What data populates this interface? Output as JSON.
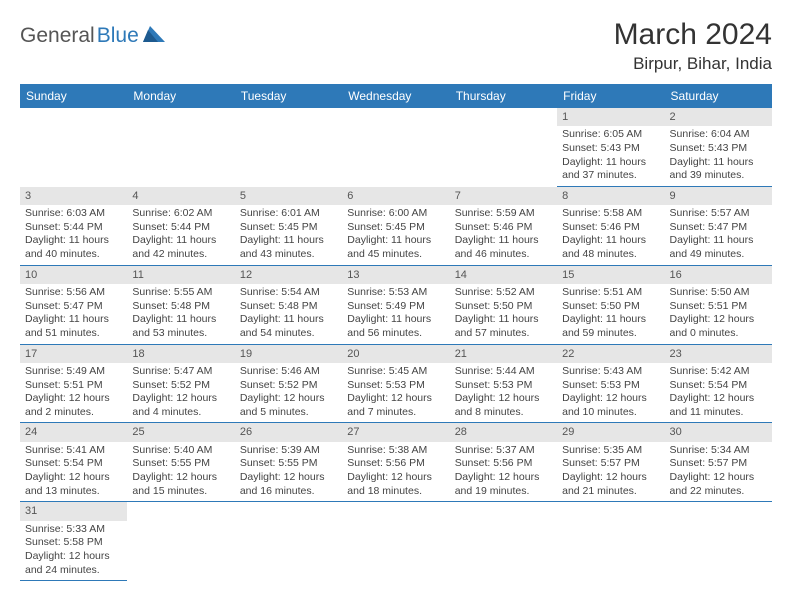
{
  "logo": {
    "part1": "General",
    "part2": "Blue"
  },
  "title": "March 2024",
  "location": "Birpur, Bihar, India",
  "colors": {
    "header_bg": "#2e79b8",
    "daynum_bg": "#e6e6e6",
    "border": "#2e79b8"
  },
  "weekdays": [
    "Sunday",
    "Monday",
    "Tuesday",
    "Wednesday",
    "Thursday",
    "Friday",
    "Saturday"
  ],
  "weeks": [
    [
      null,
      null,
      null,
      null,
      null,
      {
        "n": "1",
        "sr": "Sunrise: 6:05 AM",
        "ss": "Sunset: 5:43 PM",
        "d1": "Daylight: 11 hours",
        "d2": "and 37 minutes."
      },
      {
        "n": "2",
        "sr": "Sunrise: 6:04 AM",
        "ss": "Sunset: 5:43 PM",
        "d1": "Daylight: 11 hours",
        "d2": "and 39 minutes."
      }
    ],
    [
      {
        "n": "3",
        "sr": "Sunrise: 6:03 AM",
        "ss": "Sunset: 5:44 PM",
        "d1": "Daylight: 11 hours",
        "d2": "and 40 minutes."
      },
      {
        "n": "4",
        "sr": "Sunrise: 6:02 AM",
        "ss": "Sunset: 5:44 PM",
        "d1": "Daylight: 11 hours",
        "d2": "and 42 minutes."
      },
      {
        "n": "5",
        "sr": "Sunrise: 6:01 AM",
        "ss": "Sunset: 5:45 PM",
        "d1": "Daylight: 11 hours",
        "d2": "and 43 minutes."
      },
      {
        "n": "6",
        "sr": "Sunrise: 6:00 AM",
        "ss": "Sunset: 5:45 PM",
        "d1": "Daylight: 11 hours",
        "d2": "and 45 minutes."
      },
      {
        "n": "7",
        "sr": "Sunrise: 5:59 AM",
        "ss": "Sunset: 5:46 PM",
        "d1": "Daylight: 11 hours",
        "d2": "and 46 minutes."
      },
      {
        "n": "8",
        "sr": "Sunrise: 5:58 AM",
        "ss": "Sunset: 5:46 PM",
        "d1": "Daylight: 11 hours",
        "d2": "and 48 minutes."
      },
      {
        "n": "9",
        "sr": "Sunrise: 5:57 AM",
        "ss": "Sunset: 5:47 PM",
        "d1": "Daylight: 11 hours",
        "d2": "and 49 minutes."
      }
    ],
    [
      {
        "n": "10",
        "sr": "Sunrise: 5:56 AM",
        "ss": "Sunset: 5:47 PM",
        "d1": "Daylight: 11 hours",
        "d2": "and 51 minutes."
      },
      {
        "n": "11",
        "sr": "Sunrise: 5:55 AM",
        "ss": "Sunset: 5:48 PM",
        "d1": "Daylight: 11 hours",
        "d2": "and 53 minutes."
      },
      {
        "n": "12",
        "sr": "Sunrise: 5:54 AM",
        "ss": "Sunset: 5:48 PM",
        "d1": "Daylight: 11 hours",
        "d2": "and 54 minutes."
      },
      {
        "n": "13",
        "sr": "Sunrise: 5:53 AM",
        "ss": "Sunset: 5:49 PM",
        "d1": "Daylight: 11 hours",
        "d2": "and 56 minutes."
      },
      {
        "n": "14",
        "sr": "Sunrise: 5:52 AM",
        "ss": "Sunset: 5:50 PM",
        "d1": "Daylight: 11 hours",
        "d2": "and 57 minutes."
      },
      {
        "n": "15",
        "sr": "Sunrise: 5:51 AM",
        "ss": "Sunset: 5:50 PM",
        "d1": "Daylight: 11 hours",
        "d2": "and 59 minutes."
      },
      {
        "n": "16",
        "sr": "Sunrise: 5:50 AM",
        "ss": "Sunset: 5:51 PM",
        "d1": "Daylight: 12 hours",
        "d2": "and 0 minutes."
      }
    ],
    [
      {
        "n": "17",
        "sr": "Sunrise: 5:49 AM",
        "ss": "Sunset: 5:51 PM",
        "d1": "Daylight: 12 hours",
        "d2": "and 2 minutes."
      },
      {
        "n": "18",
        "sr": "Sunrise: 5:47 AM",
        "ss": "Sunset: 5:52 PM",
        "d1": "Daylight: 12 hours",
        "d2": "and 4 minutes."
      },
      {
        "n": "19",
        "sr": "Sunrise: 5:46 AM",
        "ss": "Sunset: 5:52 PM",
        "d1": "Daylight: 12 hours",
        "d2": "and 5 minutes."
      },
      {
        "n": "20",
        "sr": "Sunrise: 5:45 AM",
        "ss": "Sunset: 5:53 PM",
        "d1": "Daylight: 12 hours",
        "d2": "and 7 minutes."
      },
      {
        "n": "21",
        "sr": "Sunrise: 5:44 AM",
        "ss": "Sunset: 5:53 PM",
        "d1": "Daylight: 12 hours",
        "d2": "and 8 minutes."
      },
      {
        "n": "22",
        "sr": "Sunrise: 5:43 AM",
        "ss": "Sunset: 5:53 PM",
        "d1": "Daylight: 12 hours",
        "d2": "and 10 minutes."
      },
      {
        "n": "23",
        "sr": "Sunrise: 5:42 AM",
        "ss": "Sunset: 5:54 PM",
        "d1": "Daylight: 12 hours",
        "d2": "and 11 minutes."
      }
    ],
    [
      {
        "n": "24",
        "sr": "Sunrise: 5:41 AM",
        "ss": "Sunset: 5:54 PM",
        "d1": "Daylight: 12 hours",
        "d2": "and 13 minutes."
      },
      {
        "n": "25",
        "sr": "Sunrise: 5:40 AM",
        "ss": "Sunset: 5:55 PM",
        "d1": "Daylight: 12 hours",
        "d2": "and 15 minutes."
      },
      {
        "n": "26",
        "sr": "Sunrise: 5:39 AM",
        "ss": "Sunset: 5:55 PM",
        "d1": "Daylight: 12 hours",
        "d2": "and 16 minutes."
      },
      {
        "n": "27",
        "sr": "Sunrise: 5:38 AM",
        "ss": "Sunset: 5:56 PM",
        "d1": "Daylight: 12 hours",
        "d2": "and 18 minutes."
      },
      {
        "n": "28",
        "sr": "Sunrise: 5:37 AM",
        "ss": "Sunset: 5:56 PM",
        "d1": "Daylight: 12 hours",
        "d2": "and 19 minutes."
      },
      {
        "n": "29",
        "sr": "Sunrise: 5:35 AM",
        "ss": "Sunset: 5:57 PM",
        "d1": "Daylight: 12 hours",
        "d2": "and 21 minutes."
      },
      {
        "n": "30",
        "sr": "Sunrise: 5:34 AM",
        "ss": "Sunset: 5:57 PM",
        "d1": "Daylight: 12 hours",
        "d2": "and 22 minutes."
      }
    ],
    [
      {
        "n": "31",
        "sr": "Sunrise: 5:33 AM",
        "ss": "Sunset: 5:58 PM",
        "d1": "Daylight: 12 hours",
        "d2": "and 24 minutes."
      },
      null,
      null,
      null,
      null,
      null,
      null
    ]
  ]
}
